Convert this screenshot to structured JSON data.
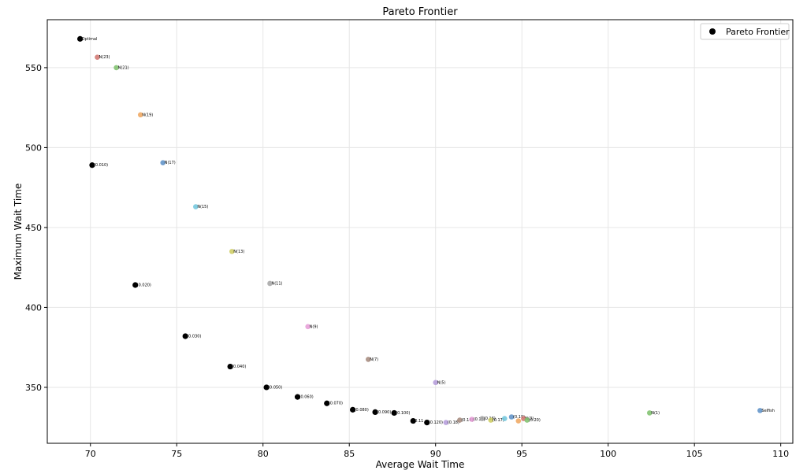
{
  "chart_data": {
    "type": "scatter",
    "title": "Pareto Frontier",
    "xlabel": "Average Wait Time",
    "ylabel": "Maximum Wait Time",
    "xlim": [
      67.5,
      110.7
    ],
    "ylim": [
      315,
      580
    ],
    "xticks": [
      70,
      75,
      80,
      85,
      90,
      95,
      100,
      105,
      110
    ],
    "yticks": [
      350,
      400,
      450,
      500,
      550
    ],
    "grid": true,
    "legend": {
      "position": "top-right",
      "entries": [
        "Pareto Frontier"
      ]
    },
    "series": [
      {
        "name": "Pareto Frontier",
        "color": "#000000",
        "points": [
          {
            "x": 69.4,
            "y": 568,
            "label": "Optimal"
          },
          {
            "x": 70.1,
            "y": 489,
            "label": "(0.010)"
          },
          {
            "x": 72.6,
            "y": 414,
            "label": "(0.020)"
          },
          {
            "x": 75.5,
            "y": 382,
            "label": "(0.030)"
          },
          {
            "x": 78.1,
            "y": 363,
            "label": "(0.040)"
          },
          {
            "x": 80.2,
            "y": 350,
            "label": "(0.050)"
          },
          {
            "x": 82.0,
            "y": 344,
            "label": "(0.060)"
          },
          {
            "x": 83.7,
            "y": 340,
            "label": "(0.070)"
          },
          {
            "x": 85.2,
            "y": 336,
            "label": "(0.080)"
          },
          {
            "x": 86.5,
            "y": 334.5,
            "label": "(0.090)"
          },
          {
            "x": 87.6,
            "y": 334,
            "label": "(0.100)"
          },
          {
            "x": 88.7,
            "y": 329,
            "label": "0.11"
          },
          {
            "x": 89.5,
            "y": 328,
            "label": "(0.120)"
          }
        ]
      },
      {
        "name": "",
        "points": [
          {
            "x": 70.4,
            "y": 556.5,
            "label": "N(23)",
            "color": "#d0726c"
          },
          {
            "x": 71.5,
            "y": 550,
            "label": "N(21)",
            "color": "#7bbf6a"
          },
          {
            "x": 72.9,
            "y": 520.5,
            "label": "N(19)",
            "color": "#efa55c"
          },
          {
            "x": 74.2,
            "y": 490.5,
            "label": "N(17)",
            "color": "#5b8fc7"
          },
          {
            "x": 76.1,
            "y": 463,
            "label": "N(15)",
            "color": "#6ec6dc"
          },
          {
            "x": 78.2,
            "y": 435,
            "label": "N(13)",
            "color": "#cccb5e"
          },
          {
            "x": 80.4,
            "y": 415,
            "label": "N(11)",
            "color": "#a5a5a5"
          },
          {
            "x": 82.6,
            "y": 388,
            "label": "N(9)",
            "color": "#e59ad6"
          },
          {
            "x": 86.1,
            "y": 367.5,
            "label": "N(7)",
            "color": "#a3877a"
          },
          {
            "x": 90.0,
            "y": 353,
            "label": "N(5)",
            "color": "#b39ad9"
          },
          {
            "x": 90.6,
            "y": 328,
            "label": "(0.18)",
            "color": "#b39ad9"
          },
          {
            "x": 91.4,
            "y": 329.5,
            "label": "(0.14)",
            "color": "#a3877a"
          },
          {
            "x": 92.1,
            "y": 330,
            "label": "(0.15)",
            "color": "#e59ad6"
          },
          {
            "x": 92.7,
            "y": 330.5,
            "label": "(0.16)",
            "color": "#a5a5a5"
          },
          {
            "x": 93.2,
            "y": 329.5,
            "label": "(0.17)",
            "color": "#cccb5e"
          },
          {
            "x": 94.0,
            "y": 330.5,
            "label": "",
            "color": "#6ec6dc"
          },
          {
            "x": 94.4,
            "y": 331.5,
            "label": "(0.19)",
            "color": "#5b8fc7"
          },
          {
            "x": 94.8,
            "y": 329,
            "label": "",
            "color": "#efa55c"
          },
          {
            "x": 95.1,
            "y": 330.5,
            "label": "N(3)",
            "color": "#d0726c"
          },
          {
            "x": 95.3,
            "y": 329.5,
            "label": "(0.20)",
            "color": "#7bbf6a"
          },
          {
            "x": 102.4,
            "y": 334,
            "label": "N(1)",
            "color": "#7bbf6a"
          },
          {
            "x": 108.8,
            "y": 335.5,
            "label": "Selfish",
            "color": "#5b8fc7"
          }
        ]
      }
    ]
  }
}
